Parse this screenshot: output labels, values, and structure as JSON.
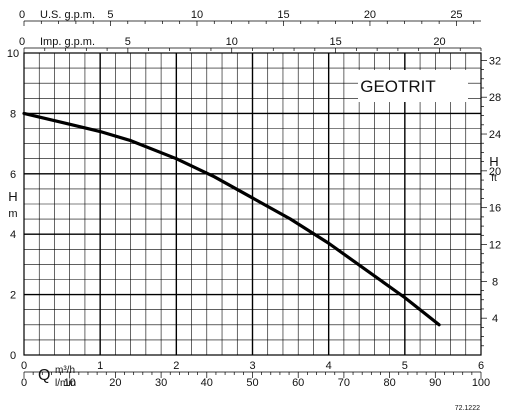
{
  "chart_data": {
    "type": "line",
    "title": "GEOTRIT",
    "left_axis": {
      "label_top": "H",
      "label_bottom": "m",
      "range": [
        0,
        10
      ],
      "ticks": [
        "0",
        "2",
        "4",
        "6",
        "8",
        "10"
      ]
    },
    "right_axis": {
      "label_top": "H",
      "label_bottom": "ft",
      "range": [
        0,
        32.8
      ],
      "ticks": [
        "4",
        "8",
        "12",
        "16",
        "20",
        "24",
        "28",
        "32"
      ]
    },
    "top_axis_us": {
      "label": "U.S. g.p.m.",
      "range": [
        0,
        26.42
      ],
      "ticks": [
        "0",
        "5",
        "10",
        "15",
        "20",
        "25"
      ]
    },
    "top_axis_imp": {
      "label": "Imp. g.p.m.",
      "range": [
        0,
        22
      ],
      "ticks": [
        "0",
        "5",
        "10",
        "15",
        "20"
      ]
    },
    "bottom_axis_m3h": {
      "label_symbol": "Q",
      "label": "m³/h",
      "range": [
        0,
        6
      ],
      "ticks": [
        "0",
        "1",
        "2",
        "3",
        "4",
        "5",
        "6"
      ]
    },
    "bottom_axis_lmin": {
      "label": "l/min",
      "range": [
        0,
        100
      ],
      "ticks": [
        "0",
        "10",
        "20",
        "30",
        "40",
        "50",
        "60",
        "70",
        "80",
        "90",
        "100"
      ]
    },
    "series": [
      {
        "color": "#000000",
        "x": [
          0,
          0.5,
          1.0,
          1.4,
          2.0,
          2.5,
          3.0,
          3.5,
          4.0,
          4.5,
          5.0,
          5.45
        ],
        "y": [
          8.0,
          7.7,
          7.4,
          7.1,
          6.5,
          5.9,
          5.2,
          4.5,
          3.7,
          2.8,
          1.9,
          1.0
        ]
      }
    ],
    "grid": true
  },
  "figure_code": "72.1222"
}
